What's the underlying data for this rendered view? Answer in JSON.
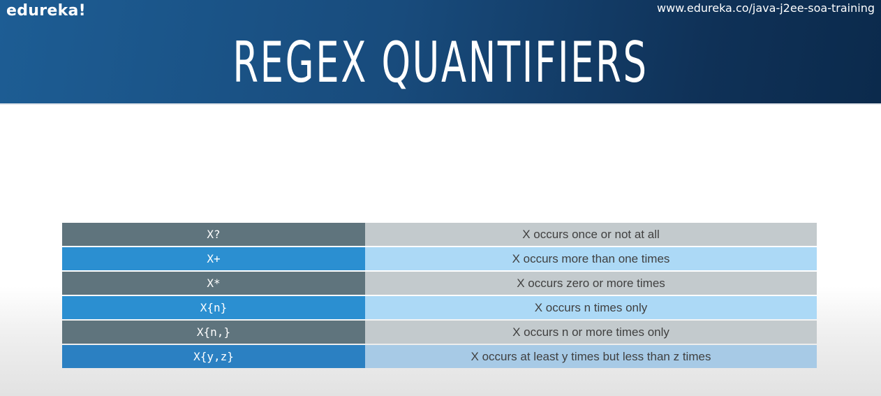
{
  "header": {
    "logo": "edureka!",
    "url": "www.edureka.co/java-j2ee-soa-training",
    "title": "REGEX QUANTIFIERS"
  },
  "table": {
    "rows": [
      {
        "quantifier": "X?",
        "description": "X occurs once or not at all"
      },
      {
        "quantifier": "X+",
        "description": "X occurs more than one times"
      },
      {
        "quantifier": "X*",
        "description": "X occurs zero or more times"
      },
      {
        "quantifier": "X{n}",
        "description": "X occurs n times only"
      },
      {
        "quantifier": "X{n,}",
        "description": "X occurs n or more times only"
      },
      {
        "quantifier": "X{y,z}",
        "description": "X occurs at least y times but less than z times"
      }
    ]
  },
  "colors": {
    "header_blue": "#184b7c",
    "key_gray": "#5f747d",
    "desc_gray": "#c3cacd",
    "key_blue": "#2b8fd1",
    "desc_blue": "#acd9f6"
  }
}
